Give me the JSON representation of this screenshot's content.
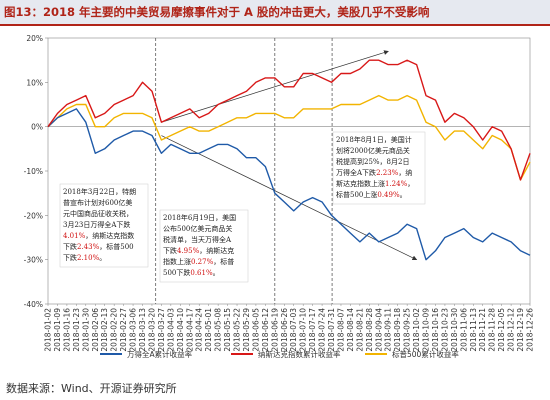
{
  "title": "图13：2018 年主要的中美贸易摩擦事件对于 A 股的冲击更大，美股几乎不受影响",
  "source": "数据来源：Wind、开源证券研究所",
  "colors": {
    "series0": "#1f5aa8",
    "series1": "#d81818",
    "series2": "#f2b400"
  },
  "chart_data": {
    "type": "line",
    "ylim": [
      -40,
      20
    ],
    "yticks": [
      "20%",
      "10%",
      "0%",
      "-10%",
      "-20%",
      "-30%",
      "-40%"
    ],
    "ytick_values": [
      20,
      10,
      0,
      -10,
      -20,
      -30,
      -40
    ],
    "xticks": [
      "2018-01-02",
      "2018-01-09",
      "2018-01-16",
      "2018-01-23",
      "2018-01-30",
      "2018-02-06",
      "2018-02-13",
      "2018-02-20",
      "2018-02-27",
      "2018-03-06",
      "2018-03-13",
      "2018-03-20",
      "2018-03-27",
      "2018-04-03",
      "2018-04-10",
      "2018-04-17",
      "2018-04-24",
      "2018-05-01",
      "2018-05-08",
      "2018-05-15",
      "2018-05-22",
      "2018-05-29",
      "2018-06-05",
      "2018-06-12",
      "2018-06-19",
      "2018-06-26",
      "2018-07-03",
      "2018-07-10",
      "2018-07-17",
      "2018-07-24",
      "2018-07-31",
      "2018-08-07",
      "2018-08-14",
      "2018-08-21",
      "2018-08-28",
      "2018-09-04",
      "2018-09-11",
      "2018-09-18",
      "2018-09-25",
      "2018-10-02",
      "2018-10-09",
      "2018-10-16",
      "2018-10-23",
      "2018-10-30",
      "2018-11-06",
      "2018-11-13",
      "2018-11-21",
      "2018-11-28",
      "2018-12-05",
      "2018-12-12",
      "2018-12-19",
      "2018-12-26"
    ],
    "event_lines": [
      "2018-03-23",
      "2018-06-19",
      "2018-08-01"
    ],
    "series": [
      {
        "name": "万得全A累计收益率",
        "x": [
          "2018-01-02",
          "2018-01-09",
          "2018-01-16",
          "2018-01-23",
          "2018-01-30",
          "2018-02-06",
          "2018-02-13",
          "2018-02-20",
          "2018-02-27",
          "2018-03-06",
          "2018-03-13",
          "2018-03-20",
          "2018-03-27",
          "2018-04-03",
          "2018-04-10",
          "2018-04-17",
          "2018-04-24",
          "2018-05-01",
          "2018-05-08",
          "2018-05-15",
          "2018-05-22",
          "2018-05-29",
          "2018-06-05",
          "2018-06-12",
          "2018-06-19",
          "2018-06-26",
          "2018-07-03",
          "2018-07-10",
          "2018-07-17",
          "2018-07-24",
          "2018-07-31",
          "2018-08-07",
          "2018-08-14",
          "2018-08-21",
          "2018-08-28",
          "2018-09-04",
          "2018-09-11",
          "2018-09-18",
          "2018-09-25",
          "2018-10-02",
          "2018-10-09",
          "2018-10-16",
          "2018-10-23",
          "2018-10-30",
          "2018-11-06",
          "2018-11-13",
          "2018-11-21",
          "2018-11-28",
          "2018-12-05",
          "2018-12-12",
          "2018-12-19",
          "2018-12-26"
        ],
        "values": [
          0,
          2,
          3,
          4,
          1,
          -6,
          -5,
          -3,
          -2,
          -1,
          -1,
          -2,
          -6,
          -4,
          -5,
          -6,
          -6,
          -5,
          -4,
          -4,
          -5,
          -7,
          -7,
          -9,
          -15,
          -17,
          -19,
          -17,
          -16,
          -17,
          -20,
          -22,
          -24,
          -26,
          -24,
          -26,
          -25,
          -24,
          -22,
          -23,
          -30,
          -28,
          -25,
          -24,
          -23,
          -25,
          -26,
          -24,
          -25,
          -26,
          -28,
          -29
        ]
      },
      {
        "name": "纳斯达克指数累计收益率",
        "x": [
          "2018-01-02",
          "2018-01-09",
          "2018-01-16",
          "2018-01-23",
          "2018-01-30",
          "2018-02-06",
          "2018-02-13",
          "2018-02-20",
          "2018-02-27",
          "2018-03-06",
          "2018-03-13",
          "2018-03-20",
          "2018-03-27",
          "2018-04-03",
          "2018-04-10",
          "2018-04-17",
          "2018-04-24",
          "2018-05-01",
          "2018-05-08",
          "2018-05-15",
          "2018-05-22",
          "2018-05-29",
          "2018-06-05",
          "2018-06-12",
          "2018-06-19",
          "2018-06-26",
          "2018-07-03",
          "2018-07-10",
          "2018-07-17",
          "2018-07-24",
          "2018-07-31",
          "2018-08-07",
          "2018-08-14",
          "2018-08-21",
          "2018-08-28",
          "2018-09-04",
          "2018-09-11",
          "2018-09-18",
          "2018-09-25",
          "2018-10-02",
          "2018-10-09",
          "2018-10-16",
          "2018-10-23",
          "2018-10-30",
          "2018-11-06",
          "2018-11-13",
          "2018-11-21",
          "2018-11-28",
          "2018-12-05",
          "2018-12-12",
          "2018-12-19",
          "2018-12-26"
        ],
        "values": [
          0,
          3,
          5,
          6,
          7,
          2,
          3,
          5,
          6,
          7,
          10,
          8,
          1,
          2,
          3,
          4,
          2,
          3,
          5,
          6,
          7,
          8,
          10,
          11,
          11,
          9,
          9,
          12,
          12,
          11,
          10,
          12,
          12,
          13,
          15,
          15,
          14,
          14,
          15,
          14,
          7,
          6,
          1,
          3,
          2,
          0,
          -3,
          0,
          -1,
          -5,
          -12,
          -6
        ]
      },
      {
        "name": "标普500累计收益率",
        "x": [
          "2018-01-02",
          "2018-01-09",
          "2018-01-16",
          "2018-01-23",
          "2018-01-30",
          "2018-02-06",
          "2018-02-13",
          "2018-02-20",
          "2018-02-27",
          "2018-03-06",
          "2018-03-13",
          "2018-03-20",
          "2018-03-27",
          "2018-04-03",
          "2018-04-10",
          "2018-04-17",
          "2018-04-24",
          "2018-05-01",
          "2018-05-08",
          "2018-05-15",
          "2018-05-22",
          "2018-05-29",
          "2018-06-05",
          "2018-06-12",
          "2018-06-19",
          "2018-06-26",
          "2018-07-03",
          "2018-07-10",
          "2018-07-17",
          "2018-07-24",
          "2018-07-31",
          "2018-08-07",
          "2018-08-14",
          "2018-08-21",
          "2018-08-28",
          "2018-09-04",
          "2018-09-11",
          "2018-09-18",
          "2018-09-25",
          "2018-10-02",
          "2018-10-09",
          "2018-10-16",
          "2018-10-23",
          "2018-10-30",
          "2018-11-06",
          "2018-11-13",
          "2018-11-21",
          "2018-11-28",
          "2018-12-05",
          "2018-12-12",
          "2018-12-19",
          "2018-12-26"
        ],
        "values": [
          0,
          2,
          4,
          5,
          5,
          0,
          0,
          2,
          3,
          3,
          3,
          2,
          -3,
          -2,
          -1,
          0,
          -1,
          -1,
          0,
          1,
          2,
          2,
          3,
          3,
          3,
          2,
          2,
          4,
          4,
          4,
          4,
          5,
          5,
          5,
          6,
          7,
          6,
          6,
          7,
          6,
          1,
          0,
          -3,
          -1,
          -1,
          -3,
          -5,
          -2,
          -3,
          -5,
          -12,
          -8
        ]
      }
    ],
    "annotations": [
      {
        "lines": [
          [
            {
              "t": "2018年3月22日，特朗"
            }
          ],
          [
            {
              "t": "普宣布计划对600亿美"
            }
          ],
          [
            {
              "t": "元中国商品征收关税，"
            }
          ],
          [
            {
              "t": "3月23日万得全A下跌"
            }
          ],
          [
            {
              "t": "4.01%",
              "red": true
            },
            {
              "t": "，纳斯达克指数"
            }
          ],
          [
            {
              "t": "下跌"
            },
            {
              "t": "2.43%",
              "red": true
            },
            {
              "t": "，标普500"
            }
          ],
          [
            {
              "t": "下跌"
            },
            {
              "t": "2.10%",
              "red": true
            },
            {
              "t": "。"
            }
          ]
        ]
      },
      {
        "lines": [
          [
            {
              "t": "2018年6月19日，美国"
            }
          ],
          [
            {
              "t": "公布500亿美元商品关"
            }
          ],
          [
            {
              "t": "税清单，当天万得全A"
            }
          ],
          [
            {
              "t": "下跌"
            },
            {
              "t": "4.95%",
              "red": true
            },
            {
              "t": "，纳斯达克"
            }
          ],
          [
            {
              "t": "指数上涨"
            },
            {
              "t": "0.27%",
              "red": true
            },
            {
              "t": "，标普"
            }
          ],
          [
            {
              "t": "500下跌"
            },
            {
              "t": "0.61%",
              "red": true
            },
            {
              "t": "。"
            }
          ]
        ]
      },
      {
        "lines": [
          [
            {
              "t": "2018年8月1日，美国计"
            }
          ],
          [
            {
              "t": "划将2000亿美元商品关"
            }
          ],
          [
            {
              "t": "税提高到25%，8月2日"
            }
          ],
          [
            {
              "t": "万得全A下跌"
            },
            {
              "t": "2.23%",
              "red": true
            },
            {
              "t": "，纳"
            }
          ],
          [
            {
              "t": "斯达克指数上涨"
            },
            {
              "t": "1.24%",
              "red": true
            },
            {
              "t": "，"
            }
          ],
          [
            {
              "t": "标普500上涨"
            },
            {
              "t": "0.49%",
              "red": true
            },
            {
              "t": "。"
            }
          ]
        ]
      }
    ]
  }
}
